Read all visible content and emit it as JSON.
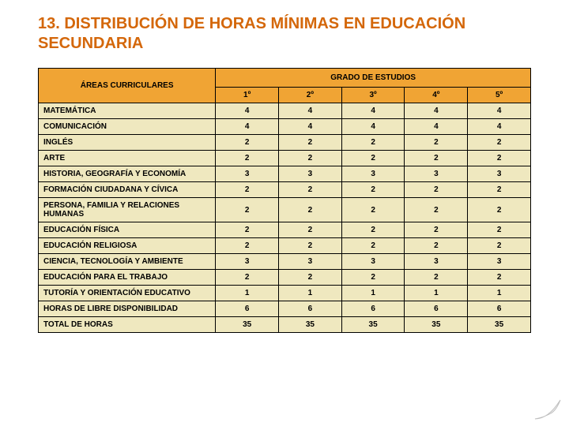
{
  "title": "13. DISTRIBUCIÓN DE HORAS MÍNIMAS EN EDUCACIÓN SECUNDARIA",
  "table": {
    "areas_header": "ÁREAS CURRICULARES",
    "grados_header": "GRADO DE ESTUDIOS",
    "grade_cols": [
      "1º",
      "2º",
      "3º",
      "4º",
      "5º"
    ],
    "rows": [
      {
        "label": "MATEMÁTICA",
        "v": [
          "4",
          "4",
          "4",
          "4",
          "4"
        ]
      },
      {
        "label": "COMUNICACIÓN",
        "v": [
          "4",
          "4",
          "4",
          "4",
          "4"
        ]
      },
      {
        "label": "INGLÉS",
        "v": [
          "2",
          "2",
          "2",
          "2",
          "2"
        ]
      },
      {
        "label": "ARTE",
        "v": [
          "2",
          "2",
          "2",
          "2",
          "2"
        ]
      },
      {
        "label": "HISTORIA, GEOGRAFÍA Y ECONOMÍA",
        "v": [
          "3",
          "3",
          "3",
          "3",
          "3"
        ]
      },
      {
        "label": "FORMACIÓN CIUDADANA Y CÍVICA",
        "v": [
          "2",
          "2",
          "2",
          "2",
          "2"
        ]
      },
      {
        "label": "PERSONA, FAMILIA Y RELACIONES HUMANAS",
        "v": [
          "2",
          "2",
          "2",
          "2",
          "2"
        ]
      },
      {
        "label": "EDUCACIÓN FÍSICA",
        "v": [
          "2",
          "2",
          "2",
          "2",
          "2"
        ]
      },
      {
        "label": "EDUCACIÓN RELIGIOSA",
        "v": [
          "2",
          "2",
          "2",
          "2",
          "2"
        ]
      },
      {
        "label": "CIENCIA, TECNOLOGÍA Y AMBIENTE",
        "v": [
          "3",
          "3",
          "3",
          "3",
          "3"
        ]
      },
      {
        "label": "EDUCACIÓN PARA EL TRABAJO",
        "v": [
          "2",
          "2",
          "2",
          "2",
          "2"
        ]
      },
      {
        "label": "TUTORÍA Y ORIENTACIÓN EDUCATIVO",
        "v": [
          "1",
          "1",
          "1",
          "1",
          "1"
        ]
      },
      {
        "label": "HORAS DE LIBRE DISPONIBILIDAD",
        "v": [
          "6",
          "6",
          "6",
          "6",
          "6"
        ]
      },
      {
        "label": "TOTAL DE HORAS",
        "v": [
          "35",
          "35",
          "35",
          "35",
          "35"
        ]
      }
    ]
  },
  "colors": {
    "title": "#d4670a",
    "header_bg": "#f0a434",
    "body_bg": "#efe8bf",
    "border": "#000000",
    "page_curl_fill": "#f2f2f2",
    "page_curl_stroke": "#bfbfbf"
  },
  "fonts": {
    "title_size_pt": 15,
    "cell_size_pt": 7,
    "family": "Verdana"
  }
}
